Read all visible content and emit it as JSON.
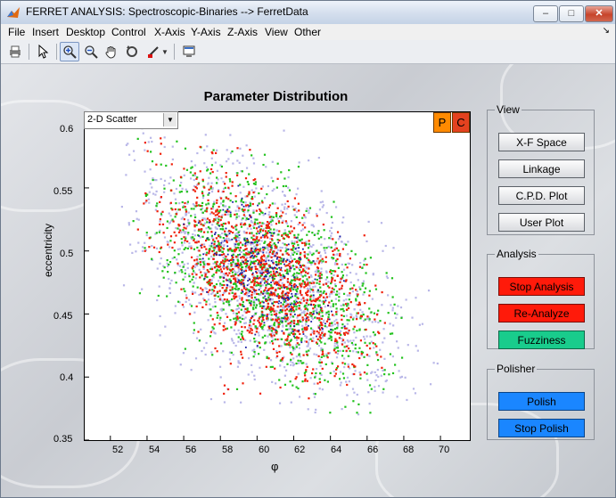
{
  "window": {
    "title": "FERRET ANALYSIS: Spectroscopic-Binaries --> FerretData",
    "minimize": "‒",
    "maximize": "□",
    "close": "✕"
  },
  "menu": [
    "File",
    "Insert",
    "Desktop",
    "Control",
    "X-Axis",
    "Y-Axis",
    "Z-Axis",
    "View",
    "Other"
  ],
  "menu_overflow": "↘",
  "toolbar": {
    "icons": [
      "print-icon",
      "pointer-icon",
      "zoom-in-icon",
      "zoom-out-icon",
      "pan-hand-icon",
      "rotate-icon",
      "brush-icon",
      "plot-tools-icon"
    ],
    "active": "zoom-in-icon"
  },
  "plot": {
    "title": "Parameter Distribution",
    "plot_type": "2-D Scatter",
    "p_label": "P",
    "c_label": "C",
    "xlabel": "φ",
    "ylabel": "eccentricity",
    "xticks": [
      "52",
      "54",
      "56",
      "58",
      "60",
      "62",
      "64",
      "66",
      "68",
      "70"
    ],
    "yticks": [
      "0.6",
      "0.55",
      "0.5",
      "0.45",
      "0.4",
      "0.35"
    ]
  },
  "colors": {
    "background_points": "#b9b7e8",
    "dark_points": "#1a1fa3",
    "green_points": "#22c21d",
    "red_points": "#f0200a",
    "p_button": "#ff8a00",
    "c_button": "#e3421f"
  },
  "chart_data": {
    "type": "scatter",
    "title": "Parameter Distribution",
    "xlabel": "φ",
    "ylabel": "eccentricity",
    "xlim": [
      50.6,
      71.6
    ],
    "ylim": [
      0.35,
      0.61
    ],
    "xticks": [
      52,
      54,
      56,
      58,
      60,
      62,
      64,
      66,
      68,
      70
    ],
    "yticks": [
      0.35,
      0.4,
      0.45,
      0.5,
      0.55,
      0.6
    ],
    "description_of_distribution": {
      "centroid_x": 60.5,
      "centroid_y": 0.48,
      "extent_x": [
        52.5,
        70.0
      ],
      "extent_y": [
        0.37,
        0.6
      ],
      "orientation": "negative correlation"
    },
    "series": [
      {
        "color": "#b9b7e8",
        "x_range": [
          52.5,
          70.0
        ],
        "y_range": [
          0.37,
          0.6
        ]
      },
      {
        "color": "#22c21d",
        "x_range": [
          53.0,
          68.0
        ],
        "y_range": [
          0.37,
          0.59
        ]
      },
      {
        "color": "#f0200a",
        "x_range": [
          53.5,
          67.0
        ],
        "y_range": [
          0.38,
          0.59
        ]
      },
      {
        "color": "#1a1fa3",
        "x_range": [
          55.0,
          65.0
        ],
        "y_range": [
          0.42,
          0.56
        ]
      }
    ]
  },
  "view_panel": {
    "title": "View",
    "buttons": [
      "X-F Space",
      "Linkage",
      "C.P.D. Plot",
      "User Plot"
    ]
  },
  "analysis_panel": {
    "title": "Analysis",
    "buttons": [
      "Stop Analysis",
      "Re-Analyze",
      "Fuzziness"
    ]
  },
  "polisher_panel": {
    "title": "Polisher",
    "buttons": [
      "Polish",
      "Stop Polish"
    ]
  }
}
